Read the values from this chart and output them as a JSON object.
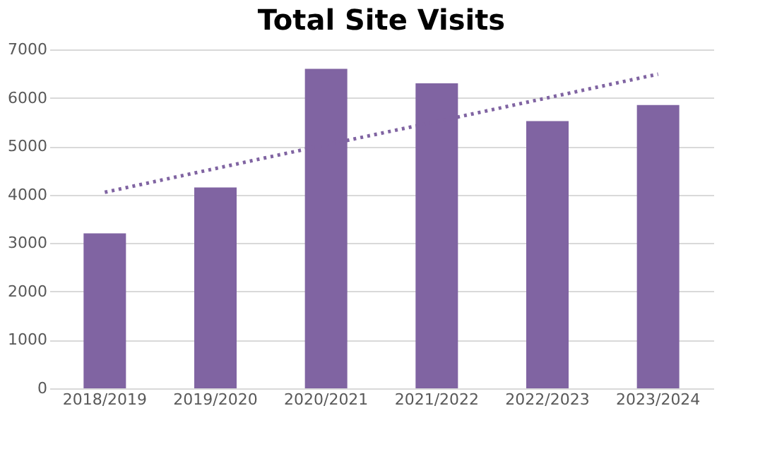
{
  "chart_data": {
    "type": "bar",
    "title": "Total Site Visits",
    "categories": [
      "2018/2019",
      "2019/2020",
      "2020/2021",
      "2021/2022",
      "2022/2023",
      "2023/2024"
    ],
    "series": [
      {
        "color": "#8064a2",
        "values": [
          3200,
          4150,
          6600,
          6300,
          5520,
          5850
        ]
      },
      {
        "type": "line",
        "color": "#8064a2",
        "line_style": "dotted",
        "values": [
          4050,
          4540,
          5030,
          5510,
          6000,
          6490
        ]
      }
    ],
    "ylim": [
      0,
      7000
    ],
    "yticks": [
      0,
      1000,
      2000,
      3000,
      4000,
      5000,
      6000,
      7000
    ],
    "grid": "y"
  }
}
